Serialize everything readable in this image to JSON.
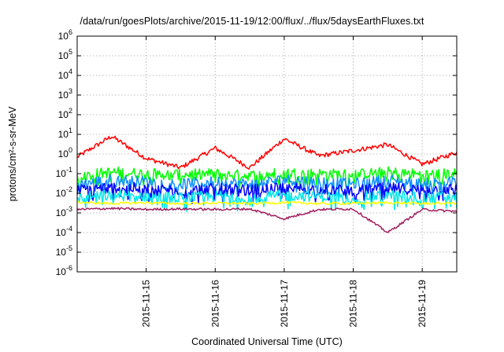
{
  "chart_data": {
    "type": "line",
    "title": "/data/run/goesPlots/archive/2015-11-19/12:00/flux/../flux/5daysEarthFluxes.txt",
    "xlabel": "Coordinated Universal Time (UTC)",
    "ylabel": "protons/cm²-s-sr-MeV",
    "y_scale": "log",
    "ylim_exponents": [
      -6,
      6
    ],
    "y_ticks": [
      "10-6",
      "10-5",
      "10-4",
      "10-3",
      "10-2",
      "10-1",
      "100",
      "101",
      "102",
      "103",
      "104",
      "105",
      "106"
    ],
    "x_range": [
      "2015-11-14 00:00",
      "2015-11-19 12:00"
    ],
    "x_ticks": [
      "2015-11-15",
      "2015-11-16",
      "2015-11-17",
      "2015-11-18",
      "2015-11-19"
    ],
    "grid": true,
    "legend": "none",
    "x_days": [
      0.0,
      0.5,
      1.0,
      1.5,
      2.0,
      2.5,
      3.0,
      3.5,
      4.0,
      4.5,
      5.0,
      5.5
    ],
    "series": [
      {
        "color": "#ff0000",
        "values": [
          0.7,
          8,
          0.6,
          0.2,
          2,
          0.2,
          6,
          0.8,
          1.5,
          3,
          0.3,
          1.2
        ]
      },
      {
        "color": "#00ff00",
        "values": [
          0.08,
          0.12,
          0.1,
          0.09,
          0.1,
          0.08,
          0.11,
          0.1,
          0.09,
          0.12,
          0.09,
          0.1
        ]
      },
      {
        "color": "#1090ff",
        "values": [
          0.03,
          0.05,
          0.04,
          0.03,
          0.04,
          0.03,
          0.05,
          0.04,
          0.03,
          0.05,
          0.03,
          0.04
        ]
      },
      {
        "color": "#0000ff",
        "values": [
          0.015,
          0.02,
          0.018,
          0.014,
          0.017,
          0.015,
          0.02,
          0.016,
          0.014,
          0.019,
          0.015,
          0.017
        ]
      },
      {
        "color": "#00e8e8",
        "values": [
          0.006,
          0.008,
          0.007,
          0.006,
          0.007,
          0.006,
          0.008,
          0.007,
          0.006,
          0.008,
          0.006,
          0.007
        ]
      },
      {
        "color": "#ffff00",
        "values": [
          0.0035,
          0.003,
          0.0033,
          0.003,
          0.0032,
          0.003,
          0.0034,
          0.003,
          0.0031,
          0.0033,
          0.003,
          0.0032
        ]
      },
      {
        "color": "#a02060",
        "values": [
          0.0015,
          0.0017,
          0.0015,
          0.0016,
          0.0015,
          0.0016,
          0.0005,
          0.0015,
          0.0016,
          0.0001,
          0.0015,
          0.0012
        ]
      }
    ]
  }
}
